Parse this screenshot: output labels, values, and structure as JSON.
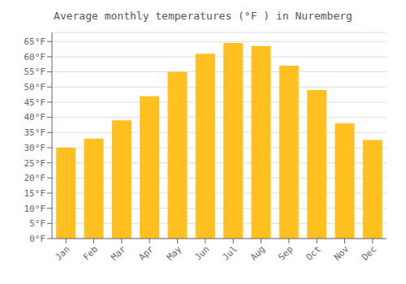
{
  "chart_data": {
    "type": "bar",
    "title": "Average monthly temperatures (°F ) in Nuremberg",
    "categories": [
      "Jan",
      "Feb",
      "Mar",
      "Apr",
      "May",
      "Jun",
      "Jul",
      "Aug",
      "Sep",
      "Oct",
      "Nov",
      "Dec"
    ],
    "values": [
      30,
      33,
      39,
      47,
      55,
      61,
      64.5,
      63.5,
      57,
      49,
      38,
      32.5
    ],
    "color": "#FFC020",
    "ylim": [
      0,
      68
    ],
    "yticks": [
      {
        "value": 0,
        "label": "0°F"
      },
      {
        "value": 5,
        "label": "5°F"
      },
      {
        "value": 10,
        "label": "10°F"
      },
      {
        "value": 15,
        "label": "15°F"
      },
      {
        "value": 20,
        "label": "20°F"
      },
      {
        "value": 25,
        "label": "25°F"
      },
      {
        "value": 30,
        "label": "30°F"
      },
      {
        "value": 35,
        "label": "35°F"
      },
      {
        "value": 40,
        "label": "40°F"
      },
      {
        "value": 45,
        "label": "45°F"
      },
      {
        "value": 50,
        "label": "50°F"
      },
      {
        "value": 55,
        "label": "55°F"
      },
      {
        "value": 60,
        "label": "60°F"
      },
      {
        "value": 65,
        "label": "65°F"
      }
    ],
    "grid": true
  }
}
